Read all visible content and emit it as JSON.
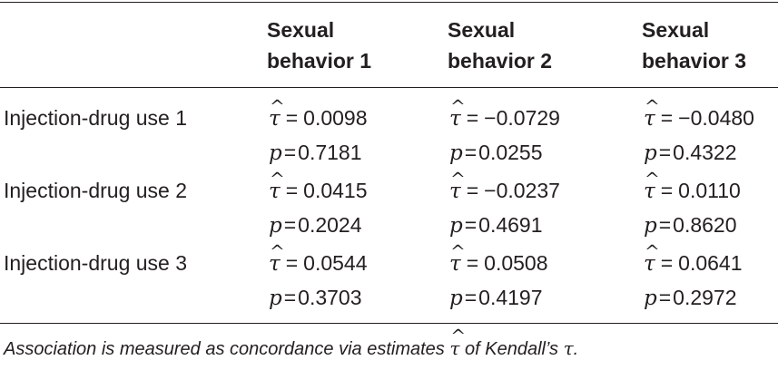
{
  "headers": [
    {
      "line1": "Sexual",
      "line2": "behavior 1"
    },
    {
      "line1": "Sexual",
      "line2": "behavior 2"
    },
    {
      "line1": "Sexual",
      "line2": "behavior 3"
    }
  ],
  "tau_symbol": "τ",
  "p_symbol": "p",
  "equals": "=",
  "rows": [
    {
      "label": "Injection-drug use 1",
      "tau": [
        "0.0098",
        "−0.0729",
        "−0.0480"
      ],
      "p": [
        "0.7181",
        "0.0255",
        "0.4322"
      ]
    },
    {
      "label": "Injection-drug use 2",
      "tau": [
        "0.0415",
        "−0.0237",
        "0.0110"
      ],
      "p": [
        "0.2024",
        "0.4691",
        "0.8620"
      ]
    },
    {
      "label": "Injection-drug use 3",
      "tau": [
        "0.0544",
        "0.0508",
        "0.0641"
      ],
      "p": [
        "0.3703",
        "0.4197",
        "0.2972"
      ]
    }
  ],
  "caption": {
    "before": "Association is measured as concordance via estimates ",
    "after": " of Kendall’s ",
    "end": "."
  }
}
